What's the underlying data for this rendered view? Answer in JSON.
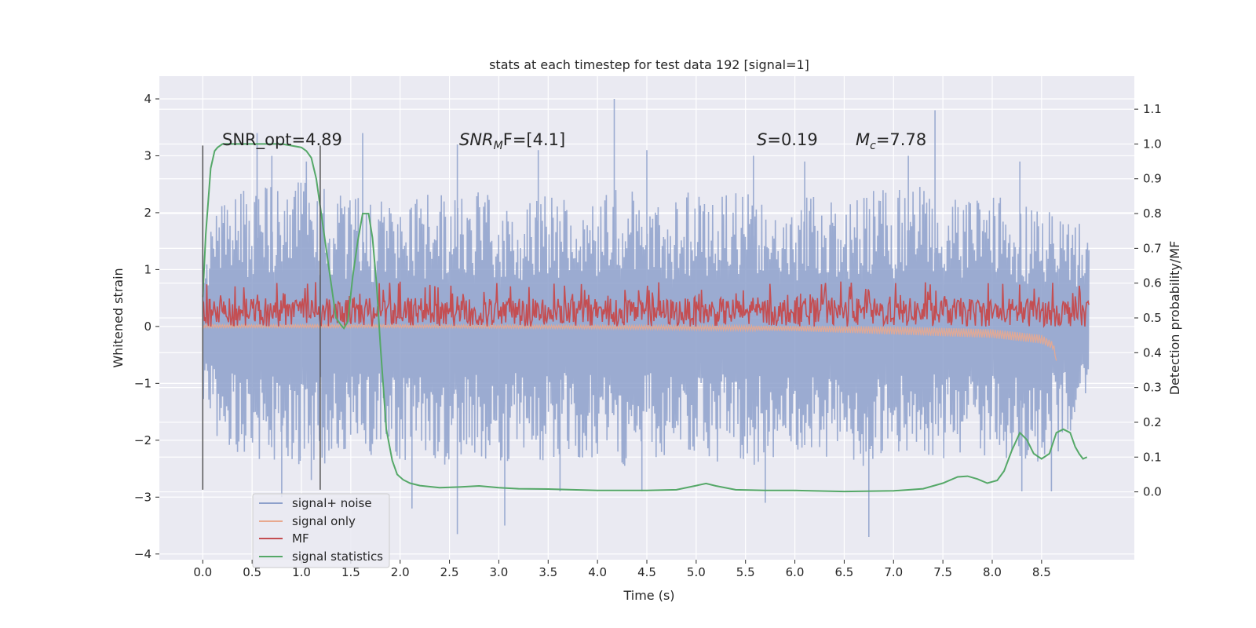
{
  "chart_data": {
    "type": "line",
    "title": "stats at each timestep for test data 192 [signal=1]",
    "xlabel": "Time (s)",
    "ylabel": "Whitened strain",
    "ylabel_right": "Detection probability/MF",
    "xlim": [
      -0.44,
      9.44
    ],
    "ylim": [
      -4.1,
      4.4
    ],
    "ylim_right": [
      -0.195,
      1.195
    ],
    "x_ticks": [
      "0.0",
      "0.5",
      "1.0",
      "1.5",
      "2.0",
      "2.5",
      "3.0",
      "3.5",
      "4.0",
      "4.5",
      "5.0",
      "5.5",
      "6.0",
      "6.5",
      "7.0",
      "7.5",
      "8.0",
      "8.5"
    ],
    "x_tick_values": [
      0,
      0.5,
      1,
      1.5,
      2,
      2.5,
      3,
      3.5,
      4,
      4.5,
      5,
      5.5,
      6,
      6.5,
      7,
      7.5,
      8,
      8.5
    ],
    "y_ticks": [
      "4",
      "3",
      "2",
      "1",
      "0",
      "−1",
      "−2",
      "−3",
      "−4"
    ],
    "y_tick_values": [
      4,
      3,
      2,
      1,
      0,
      -1,
      -2,
      -3,
      -4
    ],
    "y_right_ticks": [
      "1.1",
      "1.0",
      "0.9",
      "0.8",
      "0.7",
      "0.6",
      "0.5",
      "0.4",
      "0.3",
      "0.2",
      "0.1",
      "0.0"
    ],
    "y_right_tick_values": [
      1.1,
      1.0,
      0.9,
      0.8,
      0.7,
      0.6,
      0.5,
      0.4,
      0.3,
      0.2,
      0.1,
      0.0
    ],
    "grid": true,
    "legend_position": "bottom-left",
    "annotations": {
      "snr_opt": "SNR_opt=4.89",
      "snr_mf_sym": "SNR",
      "snr_mf_sub": "M",
      "snr_mf_rest": "F=[4.1]",
      "s_sym": "S",
      "s_rest": "=0.19",
      "mc_sym": "M",
      "mc_sub": "c",
      "mc_rest": "=7.78"
    },
    "vertical_markers": [
      {
        "x": 0.0,
        "y_range": [
          -2.87,
          3.18
        ]
      },
      {
        "x": 1.19,
        "y_range": [
          -2.87,
          3.18
        ]
      }
    ],
    "series": [
      {
        "name": "signal+ noise",
        "color": "#8da0cb",
        "axis": "left",
        "x_range": [
          0.0,
          8.98
        ],
        "envelope_upper": [
          [
            0,
            1.6
          ],
          [
            0.25,
            2.3
          ],
          [
            0.5,
            2.5
          ],
          [
            0.75,
            2.7
          ],
          [
            1.0,
            2.6
          ],
          [
            1.25,
            2.4
          ],
          [
            1.5,
            2.3
          ],
          [
            1.75,
            2.2
          ],
          [
            2.0,
            2.3
          ],
          [
            2.25,
            2.4
          ],
          [
            2.5,
            2.3
          ],
          [
            2.75,
            2.5
          ],
          [
            3.0,
            2.2
          ],
          [
            3.25,
            2.3
          ],
          [
            3.5,
            2.4
          ],
          [
            3.75,
            2.4
          ],
          [
            4.0,
            2.3
          ],
          [
            4.25,
            2.5
          ],
          [
            4.5,
            2.4
          ],
          [
            4.75,
            2.3
          ],
          [
            5.0,
            2.4
          ],
          [
            5.25,
            2.3
          ],
          [
            5.5,
            2.4
          ],
          [
            5.75,
            2.5
          ],
          [
            6.0,
            2.3
          ],
          [
            6.25,
            2.4
          ],
          [
            6.5,
            2.2
          ],
          [
            6.75,
            2.4
          ],
          [
            7.0,
            2.4
          ],
          [
            7.25,
            2.5
          ],
          [
            7.5,
            2.3
          ],
          [
            7.75,
            2.2
          ],
          [
            8.0,
            2.3
          ],
          [
            8.25,
            2.2
          ],
          [
            8.5,
            2.0
          ],
          [
            8.75,
            2.2
          ],
          [
            8.98,
            1.7
          ]
        ],
        "envelope_lower": [
          [
            0,
            -1.7
          ],
          [
            0.25,
            -2.1
          ],
          [
            0.5,
            -2.4
          ],
          [
            0.75,
            -2.5
          ],
          [
            1.0,
            -2.6
          ],
          [
            1.25,
            -2.4
          ],
          [
            1.5,
            -2.2
          ],
          [
            1.75,
            -2.3
          ],
          [
            2.0,
            -2.4
          ],
          [
            2.25,
            -2.3
          ],
          [
            2.5,
            -2.5
          ],
          [
            2.75,
            -2.3
          ],
          [
            3.0,
            -2.4
          ],
          [
            3.25,
            -2.3
          ],
          [
            3.5,
            -2.4
          ],
          [
            3.75,
            -2.3
          ],
          [
            4.0,
            -2.4
          ],
          [
            4.25,
            -2.5
          ],
          [
            4.5,
            -2.3
          ],
          [
            4.75,
            -2.4
          ],
          [
            5.0,
            -2.3
          ],
          [
            5.25,
            -2.4
          ],
          [
            5.5,
            -2.5
          ],
          [
            5.75,
            -2.4
          ],
          [
            6.0,
            -2.3
          ],
          [
            6.25,
            -2.4
          ],
          [
            6.5,
            -2.3
          ],
          [
            6.75,
            -2.5
          ],
          [
            7.0,
            -2.4
          ],
          [
            7.25,
            -2.3
          ],
          [
            7.5,
            -2.4
          ],
          [
            7.75,
            -2.3
          ],
          [
            8.0,
            -2.4
          ],
          [
            8.25,
            -2.3
          ],
          [
            8.5,
            -2.4
          ],
          [
            8.75,
            -2.2
          ],
          [
            8.98,
            -1.1
          ]
        ],
        "spikes": [
          [
            0.55,
            3.4
          ],
          [
            0.7,
            3.0
          ],
          [
            1.05,
            2.9
          ],
          [
            1.62,
            3.4
          ],
          [
            2.58,
            3.2
          ],
          [
            3.4,
            3.1
          ],
          [
            4.17,
            4.0
          ],
          [
            4.5,
            3.1
          ],
          [
            5.58,
            3.0
          ],
          [
            6.1,
            2.9
          ],
          [
            7.15,
            3.0
          ],
          [
            7.42,
            3.8
          ],
          [
            8.28,
            2.9
          ],
          [
            0.8,
            -3.0
          ],
          [
            1.1,
            -2.7
          ],
          [
            2.12,
            -3.2
          ],
          [
            2.58,
            -3.65
          ],
          [
            3.06,
            -3.5
          ],
          [
            3.62,
            -2.9
          ],
          [
            4.45,
            -2.9
          ],
          [
            5.7,
            -3.1
          ],
          [
            6.75,
            -3.7
          ],
          [
            8.6,
            -2.9
          ],
          [
            8.3,
            -2.9
          ]
        ]
      },
      {
        "name": "signal only",
        "color": "#e8a98f",
        "axis": "left",
        "x_range": [
          0.0,
          8.65
        ],
        "envelope_upper": [
          [
            0,
            0.03
          ],
          [
            2,
            0.03
          ],
          [
            4,
            0.02
          ],
          [
            6,
            0.01
          ],
          [
            7,
            0.0
          ],
          [
            8,
            -0.05
          ],
          [
            8.5,
            -0.15
          ],
          [
            8.62,
            -0.28
          ],
          [
            8.65,
            -0.6
          ]
        ],
        "envelope_lower": [
          [
            0,
            -0.02
          ],
          [
            2,
            -0.02
          ],
          [
            4,
            -0.04
          ],
          [
            6,
            -0.08
          ],
          [
            7,
            -0.14
          ],
          [
            8,
            -0.2
          ],
          [
            8.5,
            -0.3
          ],
          [
            8.62,
            -0.4
          ],
          [
            8.65,
            -0.6
          ]
        ]
      },
      {
        "name": "MF",
        "color": "#c44e52",
        "axis": "left",
        "x_range": [
          0.0,
          8.98
        ],
        "band": [
          0.0,
          0.5
        ],
        "peak_level": 0.8
      },
      {
        "name": "signal statistics",
        "color": "#55a868",
        "axis": "right",
        "x": [
          0.0,
          0.03,
          0.08,
          0.12,
          0.15,
          0.2,
          0.3,
          0.5,
          0.8,
          1.0,
          1.05,
          1.1,
          1.15,
          1.2,
          1.28,
          1.35,
          1.4,
          1.43,
          1.47,
          1.52,
          1.57,
          1.62,
          1.68,
          1.72,
          1.76,
          1.8,
          1.86,
          1.92,
          1.97,
          2.03,
          2.1,
          2.2,
          2.4,
          2.6,
          2.8,
          3.0,
          3.2,
          3.5,
          4.0,
          4.5,
          4.8,
          5.0,
          5.1,
          5.2,
          5.4,
          5.7,
          6.0,
          6.5,
          7.0,
          7.3,
          7.5,
          7.65,
          7.75,
          7.85,
          7.95,
          8.05,
          8.12,
          8.2,
          8.28,
          8.35,
          8.42,
          8.5,
          8.58,
          8.65,
          8.72,
          8.79,
          8.84,
          8.88,
          8.92,
          8.96
        ],
        "y": [
          0.56,
          0.74,
          0.93,
          0.98,
          0.99,
          1.0,
          1.0,
          1.0,
          1.0,
          0.99,
          0.98,
          0.96,
          0.9,
          0.8,
          0.64,
          0.5,
          0.48,
          0.47,
          0.49,
          0.62,
          0.72,
          0.8,
          0.8,
          0.73,
          0.6,
          0.42,
          0.18,
          0.09,
          0.05,
          0.035,
          0.025,
          0.018,
          0.012,
          0.014,
          0.017,
          0.012,
          0.009,
          0.008,
          0.004,
          0.004,
          0.006,
          0.018,
          0.024,
          0.017,
          0.006,
          0.004,
          0.004,
          0.001,
          0.003,
          0.009,
          0.025,
          0.043,
          0.045,
          0.037,
          0.025,
          0.033,
          0.06,
          0.12,
          0.17,
          0.15,
          0.11,
          0.095,
          0.11,
          0.17,
          0.18,
          0.17,
          0.13,
          0.11,
          0.095,
          0.1
        ]
      }
    ]
  }
}
